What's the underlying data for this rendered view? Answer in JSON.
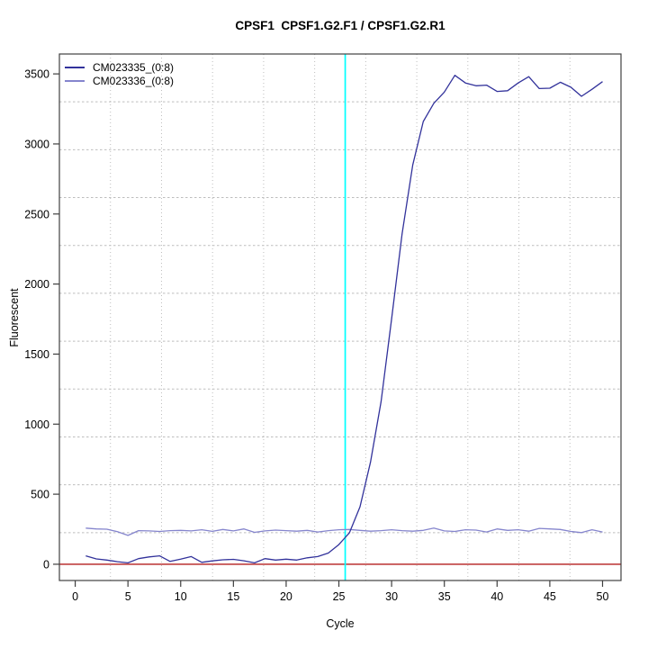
{
  "title": "CPSF1  CPSF1.G2.F1 / CPSF1.G2.R1",
  "x_axis": {
    "label": "Cycle",
    "ticks": [
      0,
      5,
      10,
      15,
      20,
      25,
      30,
      35,
      40,
      45,
      50
    ]
  },
  "y_axis": {
    "label": "Fluorescent",
    "ticks": [
      0,
      500,
      1000,
      1500,
      2000,
      2500,
      3000,
      3500
    ]
  },
  "legend": {
    "position": "top-left",
    "entries": [
      {
        "label": "CM023335_(0:8)",
        "color": "#32329b"
      },
      {
        "label": "CM023336_(0:8)",
        "color": "#8585cd"
      }
    ]
  },
  "colors": {
    "axis": "#3f3f3f",
    "grid": "#bdbdbd",
    "background": "#ffffff"
  },
  "chart_data": {
    "type": "line",
    "title": "CPSF1  CPSF1.G2.F1 / CPSF1.G2.R1",
    "xlabel": "Cycle",
    "ylabel": "Fluorescent",
    "xlim": [
      -1.5,
      51.75
    ],
    "ylim": [
      -116,
      3642
    ],
    "grid": {
      "on": true,
      "nx": 11,
      "ny": 11,
      "style": "dotted"
    },
    "x": [
      1,
      2,
      3,
      4,
      5,
      6,
      7,
      8,
      9,
      10,
      11,
      12,
      13,
      14,
      15,
      16,
      17,
      18,
      19,
      20,
      21,
      22,
      23,
      24,
      25,
      26,
      27,
      28,
      29,
      30,
      31,
      32,
      33,
      34,
      35,
      36,
      37,
      38,
      39,
      40,
      41,
      42,
      43,
      44,
      45,
      46,
      47,
      48,
      49,
      50
    ],
    "series": [
      {
        "name": "CM023335_(0:8)",
        "color": "#32329b",
        "values": [
          60,
          38,
          30,
          18,
          10,
          40,
          52,
          60,
          20,
          36,
          55,
          14,
          24,
          32,
          35,
          25,
          10,
          40,
          30,
          36,
          30,
          46,
          55,
          80,
          140,
          225,
          410,
          730,
          1160,
          1750,
          2360,
          2850,
          3160,
          3290,
          3370,
          3490,
          3435,
          3415,
          3420,
          3375,
          3380,
          3435,
          3480,
          3395,
          3398,
          3440,
          3405,
          3340,
          3390,
          3445
        ]
      },
      {
        "name": "CM023336_(0:8)",
        "color": "#8585cd",
        "values": [
          258,
          252,
          250,
          232,
          206,
          240,
          238,
          234,
          240,
          242,
          238,
          246,
          235,
          248,
          238,
          252,
          228,
          238,
          244,
          240,
          236,
          242,
          230,
          240,
          246,
          248,
          242,
          236,
          240,
          246,
          240,
          236,
          242,
          258,
          238,
          234,
          246,
          244,
          230,
          252,
          242,
          246,
          236,
          256,
          252,
          248,
          234,
          226,
          246,
          230
        ]
      }
    ],
    "threshold_line": {
      "y": 0,
      "color": "#bf4040"
    },
    "ct_line": {
      "cycle": 25.6,
      "color": "#00ffff"
    }
  }
}
